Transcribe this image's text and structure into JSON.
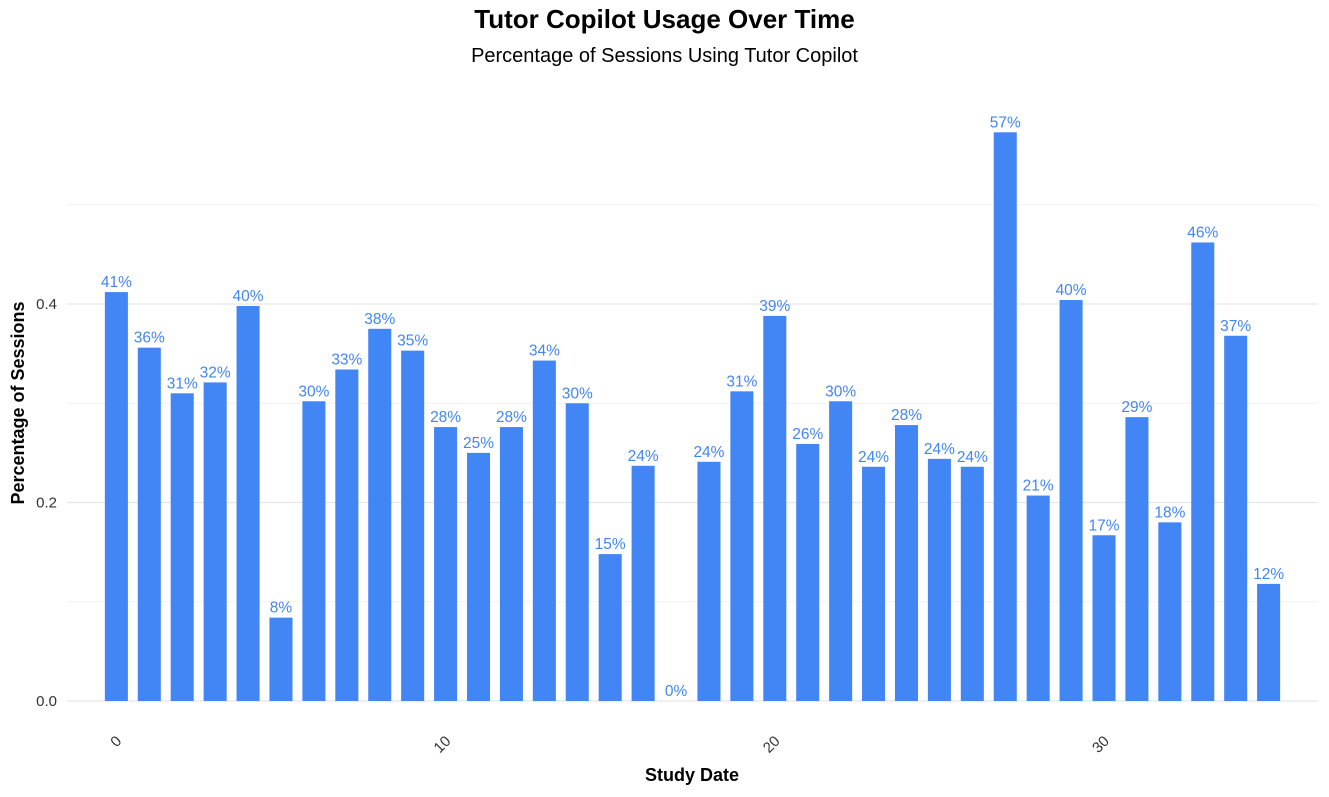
{
  "chart_data": {
    "type": "bar",
    "title": "Tutor Copilot Usage Over Time",
    "subtitle": "Percentage of Sessions Using Tutor Copilot",
    "xlabel": "Study Date",
    "ylabel": "Percentage of Sessions",
    "x": [
      0,
      1,
      2,
      3,
      4,
      5,
      6,
      7,
      8,
      9,
      10,
      11,
      12,
      13,
      14,
      15,
      16,
      17,
      18,
      19,
      20,
      21,
      22,
      23,
      24,
      25,
      26,
      27,
      28,
      29,
      30,
      31,
      32,
      33,
      34,
      35
    ],
    "values": [
      0.412,
      0.356,
      0.31,
      0.321,
      0.398,
      0.084,
      0.302,
      0.334,
      0.375,
      0.353,
      0.276,
      0.25,
      0.276,
      0.343,
      0.3,
      0.148,
      0.237,
      0.0,
      0.241,
      0.312,
      0.388,
      0.259,
      0.302,
      0.236,
      0.278,
      0.244,
      0.236,
      0.573,
      0.207,
      0.404,
      0.167,
      0.286,
      0.18,
      0.462,
      0.368,
      0.118
    ],
    "labels": [
      "41%",
      "36%",
      "31%",
      "32%",
      "40%",
      "8%",
      "30%",
      "33%",
      "38%",
      "35%",
      "28%",
      "25%",
      "28%",
      "34%",
      "30%",
      "15%",
      "24%",
      "0%",
      "24%",
      "31%",
      "39%",
      "26%",
      "30%",
      "24%",
      "28%",
      "24%",
      "24%",
      "57%",
      "21%",
      "40%",
      "17%",
      "29%",
      "18%",
      "46%",
      "37%",
      "12%"
    ],
    "xticks": [
      0,
      10,
      20,
      30
    ],
    "yticks": [
      0.0,
      0.2,
      0.4
    ],
    "yticklabels": [
      "0.0",
      "0.2",
      "0.4"
    ],
    "ylim": [
      0,
      0.6
    ],
    "xlim": [
      -1.5,
      36.5
    ],
    "bar_color": "#4285F4",
    "label_color": "#4285F4",
    "grid": true,
    "legend": "none"
  }
}
